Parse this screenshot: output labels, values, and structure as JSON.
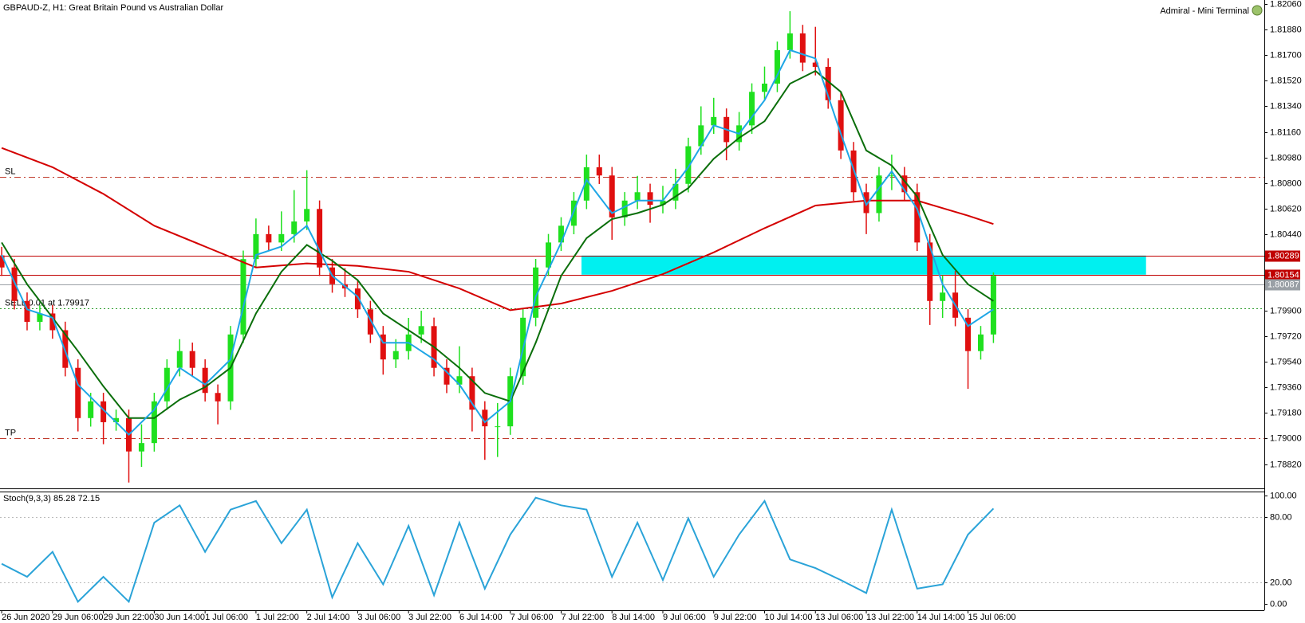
{
  "chart_data": [
    {
      "type": "candlestick",
      "title": "GBPAUD-Z, H1:  Great Britain Pound vs Australian Dollar",
      "terminal": "Admiral - Mini Terminal",
      "categories": [
        "26 Jun 2020",
        null,
        null,
        null,
        "29 Jun 06:00",
        null,
        null,
        null,
        "29 Jun 22:00",
        null,
        null,
        null,
        "30 Jun 14:00",
        null,
        null,
        null,
        "1 Jul 06:00",
        null,
        null,
        null,
        "1 Jul 22:00",
        null,
        null,
        null,
        "2 Jul 14:00",
        null,
        null,
        null,
        "3 Jul 06:00",
        null,
        null,
        null,
        "3 Jul 22:00",
        null,
        null,
        null,
        "6 Jul 14:00",
        null,
        null,
        null,
        "7 Jul 06:00",
        null,
        null,
        null,
        "7 Jul 22:00",
        null,
        null,
        null,
        "8 Jul 14:00",
        null,
        null,
        null,
        "9 Jul 06:00",
        null,
        null,
        null,
        "9 Jul 22:00",
        null,
        null,
        null,
        "10 Jul 14:00",
        null,
        null,
        null,
        "13 Jul 06:00",
        null,
        null,
        null,
        "13 Jul 22:00",
        null,
        null,
        null,
        "14 Jul 14:00",
        null,
        null,
        null,
        "15 Jul 06:00",
        null,
        null
      ],
      "open": [
        1.8029,
        1.80205,
        1.79969,
        1.79822,
        1.79881,
        1.79763,
        1.79498,
        1.79144,
        1.79262,
        1.79115,
        1.79144,
        1.78909,
        1.78968,
        1.79262,
        1.79498,
        1.79616,
        1.79498,
        1.79321,
        1.79262,
        1.79733,
        1.80264,
        1.8044,
        1.80381,
        1.8044,
        1.80529,
        1.80617,
        1.80205,
        1.80087,
        1.80057,
        1.7991,
        1.79733,
        1.79557,
        1.79616,
        1.79733,
        1.79792,
        1.79498,
        1.7938,
        1.79439,
        1.79203,
        1.79086,
        1.79086,
        1.79439,
        1.79851,
        1.80205,
        1.80381,
        1.80499,
        1.80676,
        1.80911,
        1.80853,
        1.80558,
        1.80676,
        1.80735,
        1.80646,
        1.80676,
        1.80794,
        1.81059,
        1.81206,
        1.81265,
        1.81088,
        1.81206,
        1.81442,
        1.815,
        1.81736,
        1.81854,
        1.81648,
        1.81618,
        1.81383,
        1.81029,
        1.80735,
        1.80588,
        1.80853,
        1.80853,
        1.80735,
        1.80381,
        1.79969,
        1.80028,
        1.79851,
        1.79616,
        1.79733
      ],
      "high": [
        1.8035,
        1.80265,
        1.80029,
        1.79941,
        1.79941,
        1.79823,
        1.79558,
        1.79322,
        1.79322,
        1.79204,
        1.79204,
        1.791,
        1.79322,
        1.79558,
        1.797,
        1.79676,
        1.79558,
        1.79381,
        1.79793,
        1.80324,
        1.8055,
        1.805,
        1.806,
        1.8075,
        1.8089,
        1.80677,
        1.80265,
        1.802,
        1.80117,
        1.7997,
        1.79793,
        1.797,
        1.7985,
        1.799,
        1.79852,
        1.79558,
        1.7965,
        1.79499,
        1.79263,
        1.7925,
        1.79499,
        1.79911,
        1.80265,
        1.80441,
        1.80559,
        1.80736,
        1.81,
        1.81,
        1.80913,
        1.80736,
        1.8085,
        1.80795,
        1.8078,
        1.809,
        1.81119,
        1.8134,
        1.814,
        1.81325,
        1.813,
        1.81502,
        1.8162,
        1.81796,
        1.8201,
        1.81914,
        1.819,
        1.81678,
        1.81443,
        1.81089,
        1.80795,
        1.80913,
        1.81,
        1.80913,
        1.80795,
        1.80441,
        1.8015,
        1.8018,
        1.79911,
        1.79793,
        1.8017
      ],
      "low": [
        1.80145,
        1.79909,
        1.79762,
        1.79762,
        1.79703,
        1.79438,
        1.7905,
        1.79084,
        1.7896,
        1.79055,
        1.7869,
        1.788,
        1.78908,
        1.79202,
        1.79438,
        1.79438,
        1.79261,
        1.791,
        1.79202,
        1.79673,
        1.80204,
        1.80321,
        1.80321,
        1.8038,
        1.80469,
        1.80145,
        1.80027,
        1.79997,
        1.7985,
        1.79673,
        1.7945,
        1.79497,
        1.79556,
        1.79673,
        1.79438,
        1.7932,
        1.7932,
        1.7905,
        1.7885,
        1.7887,
        1.79026,
        1.79379,
        1.79791,
        1.80145,
        1.80321,
        1.80439,
        1.80616,
        1.80793,
        1.804,
        1.80498,
        1.80616,
        1.8052,
        1.80586,
        1.80616,
        1.80734,
        1.80999,
        1.81146,
        1.8096,
        1.81028,
        1.81146,
        1.81382,
        1.8144,
        1.81676,
        1.81588,
        1.81558,
        1.81323,
        1.80969,
        1.80675,
        1.8044,
        1.80528,
        1.8075,
        1.80675,
        1.80321,
        1.798,
        1.7985,
        1.79791,
        1.7935,
        1.79556,
        1.79673
      ],
      "close": [
        1.80205,
        1.79969,
        1.79822,
        1.79881,
        1.79763,
        1.79498,
        1.79144,
        1.79262,
        1.79115,
        1.79144,
        1.78909,
        1.78968,
        1.79262,
        1.79498,
        1.79616,
        1.79498,
        1.79321,
        1.79262,
        1.79733,
        1.80264,
        1.8044,
        1.80381,
        1.8044,
        1.80529,
        1.80617,
        1.80205,
        1.80087,
        1.80057,
        1.7991,
        1.79733,
        1.79557,
        1.79616,
        1.79733,
        1.79792,
        1.79498,
        1.7938,
        1.79439,
        1.79203,
        1.79086,
        1.79086,
        1.79439,
        1.79851,
        1.80205,
        1.80381,
        1.80499,
        1.80676,
        1.80911,
        1.80853,
        1.80558,
        1.80676,
        1.80735,
        1.80646,
        1.80676,
        1.80794,
        1.81059,
        1.81206,
        1.81265,
        1.81088,
        1.81206,
        1.81442,
        1.815,
        1.81736,
        1.81854,
        1.81648,
        1.81618,
        1.81383,
        1.81029,
        1.80735,
        1.80588,
        1.80853,
        1.80853,
        1.80735,
        1.80381,
        1.79969,
        1.80028,
        1.79851,
        1.79616,
        1.79733,
        1.80146
      ],
      "up_color": "#1fe01f",
      "down_color": "#e01010",
      "overlays": [
        {
          "color": "#d40000",
          "x": [
            0,
            4,
            8,
            12,
            16,
            20,
            24,
            28,
            32,
            36,
            40,
            44,
            48,
            52,
            56,
            60,
            64,
            68,
            72,
            76,
            78
          ],
          "values": [
            1.81047,
            1.80911,
            1.80723,
            1.80499,
            1.80352,
            1.80205,
            1.80234,
            1.80216,
            1.80175,
            1.80057,
            1.79904,
            1.79951,
            1.8004,
            1.80158,
            1.80311,
            1.80482,
            1.80641,
            1.80676,
            1.80676,
            1.8057,
            1.80511
          ]
        },
        {
          "color": "#0a6e0a",
          "x": [
            0,
            2,
            4,
            6,
            8,
            10,
            12,
            14,
            16,
            18,
            20,
            22,
            24,
            26,
            28,
            30,
            32,
            34,
            36,
            38,
            40,
            42,
            44,
            46,
            48,
            50,
            52,
            54,
            56,
            58,
            60,
            62,
            64,
            66,
            68,
            70,
            72,
            74,
            76,
            78
          ],
          "values": [
            1.80381,
            1.80087,
            1.79851,
            1.79616,
            1.79368,
            1.79144,
            1.79144,
            1.79274,
            1.79362,
            1.79498,
            1.79881,
            1.80175,
            1.80364,
            1.80252,
            1.80116,
            1.79881,
            1.79763,
            1.79645,
            1.79498,
            1.79321,
            1.79262,
            1.79675,
            1.80146,
            1.80411,
            1.80546,
            1.80588,
            1.80646,
            1.80764,
            1.8097,
            1.81118,
            1.81235,
            1.815,
            1.81589,
            1.81442,
            1.81029,
            1.80923,
            1.80705,
            1.80293,
            1.80087,
            1.79969
          ]
        },
        {
          "color": "#1ea6e6",
          "x": [
            0,
            2,
            4,
            6,
            8,
            10,
            12,
            14,
            16,
            18,
            20,
            22,
            24,
            26,
            28,
            30,
            32,
            34,
            36,
            38,
            40,
            42,
            44,
            46,
            48,
            50,
            52,
            54,
            56,
            58,
            60,
            62,
            64,
            66,
            68,
            70,
            72,
            74,
            76,
            78
          ],
          "values": [
            1.80293,
            1.7991,
            1.79851,
            1.7938,
            1.79203,
            1.79027,
            1.79203,
            1.79498,
            1.7938,
            1.79557,
            1.80293,
            1.80352,
            1.80499,
            1.80146,
            1.79999,
            1.79675,
            1.79675,
            1.79557,
            1.7938,
            1.79115,
            1.79262,
            1.79999,
            1.80381,
            1.80823,
            1.80588,
            1.80676,
            1.80676,
            1.80911,
            1.81206,
            1.81147,
            1.81383,
            1.81736,
            1.81677,
            1.81147,
            1.80646,
            1.80882,
            1.80617,
            1.80087,
            1.79792,
            1.7991
          ]
        }
      ],
      "zone": {
        "color": "#00f0f0",
        "xlim": [
          45.6,
          90
        ],
        "ylim": [
          1.80154,
          1.80289
        ]
      },
      "levels": [
        {
          "label": "SL",
          "value": 1.80841,
          "color": "#c0392b",
          "style": "dashdot"
        },
        {
          "label": "TP",
          "value": 1.79003,
          "color": "#c0392b",
          "style": "dashdot"
        },
        {
          "value": 1.80289,
          "color": "#c00000",
          "style": "solid",
          "tag": true
        },
        {
          "value": 1.80154,
          "color": "#c00000",
          "style": "solid",
          "tag": true
        },
        {
          "value": 1.80087,
          "color": "#9aa0a6",
          "style": "solid",
          "tag": true
        },
        {
          "label": "SELL 0.01 at 1.79917",
          "value": 1.79917,
          "color": "#2e9e2e",
          "style": "dotted"
        }
      ],
      "ylim": [
        1.78649,
        1.82089
      ],
      "yticks": [
        {
          "value": 1.8206,
          "label": "1.82060"
        },
        {
          "value": 1.8188,
          "label": "1.81880"
        },
        {
          "value": 1.817,
          "label": "1.81700"
        },
        {
          "value": 1.8152,
          "label": "1.81520"
        },
        {
          "value": 1.8134,
          "label": "1.81340"
        },
        {
          "value": 1.8116,
          "label": "1.81160"
        },
        {
          "value": 1.8098,
          "label": "1.80980"
        },
        {
          "value": 1.808,
          "label": "1.80800"
        },
        {
          "value": 1.8062,
          "label": "1.80620"
        },
        {
          "value": 1.8044,
          "label": "1.80440"
        },
        {
          "value": 1.799,
          "label": "1.79900"
        },
        {
          "value": 1.7972,
          "label": "1.79720"
        },
        {
          "value": 1.7954,
          "label": "1.79540"
        },
        {
          "value": 1.7936,
          "label": "1.79360"
        },
        {
          "value": 1.7918,
          "label": "1.79180"
        },
        {
          "value": 1.79,
          "label": "1.79000"
        },
        {
          "value": 1.7882,
          "label": "1.78820"
        }
      ]
    },
    {
      "type": "line",
      "title": "Stoch(9,3,3) 85.28 72.15",
      "color": "#2aa3d8",
      "x": [
        0,
        2,
        4,
        6,
        8,
        10,
        12,
        14,
        16,
        18,
        20,
        22,
        24,
        26,
        28,
        30,
        32,
        34,
        36,
        38,
        40,
        42,
        44,
        46,
        48,
        50,
        52,
        54,
        56,
        58,
        60,
        62,
        64,
        66,
        68,
        70,
        72,
        74,
        76,
        78
      ],
      "values": [
        37,
        25,
        48,
        2,
        25,
        2,
        75,
        91,
        48,
        87,
        95,
        56,
        87,
        6,
        56,
        18,
        72,
        8,
        75,
        14,
        64,
        98,
        91,
        87,
        25,
        75,
        22,
        79,
        25,
        64,
        95,
        41,
        33,
        22,
        10,
        87,
        14,
        18,
        64,
        88
      ],
      "ylim": [
        -5.9,
        103.7
      ],
      "yticks": [
        {
          "value": 100,
          "label": "100.00"
        },
        {
          "value": 80,
          "label": "80.00"
        },
        {
          "value": 20,
          "label": "20.00"
        },
        {
          "value": 0,
          "label": "0.00"
        }
      ],
      "dotted_levels": [
        80,
        20
      ]
    }
  ]
}
